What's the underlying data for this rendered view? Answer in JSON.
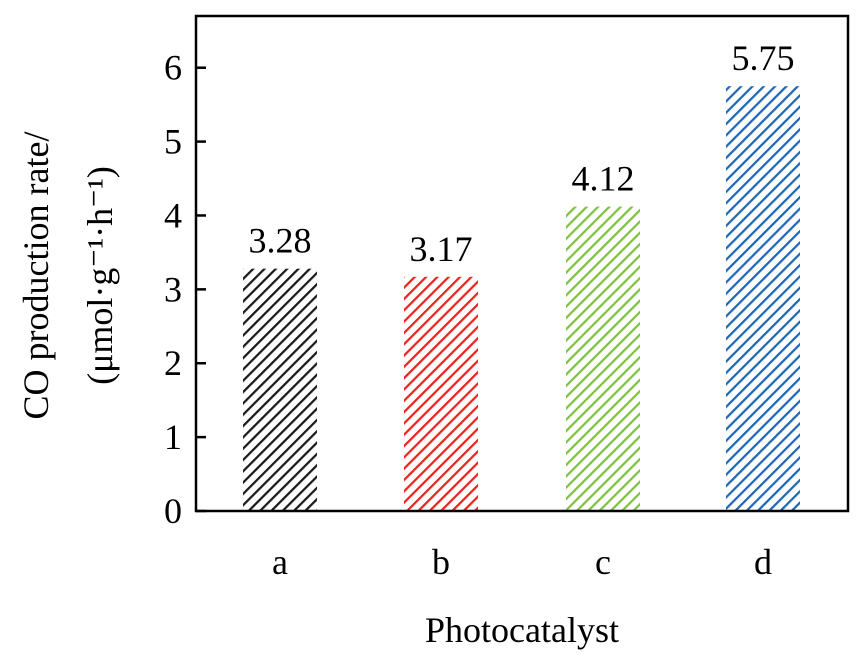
{
  "chart_data": {
    "type": "bar",
    "categories": [
      "a",
      "b",
      "c",
      "d"
    ],
    "values": [
      3.28,
      3.17,
      4.12,
      5.75
    ],
    "data_labels": [
      "3.28",
      "3.17",
      "4.12",
      "5.75"
    ],
    "xlabel": "Photocatalyst",
    "ylabel_line1": "CO production rate/",
    "ylabel_line2": "(μmol·g⁻¹·h⁻¹)",
    "ylim": [
      0,
      6.7
    ],
    "yticks": [
      0,
      1,
      2,
      3,
      4,
      5,
      6
    ],
    "grid": false,
    "hatch": "diagonal",
    "colors": [
      "#1a1a1a",
      "#e8251e",
      "#7fc241",
      "#1f68b3"
    ]
  }
}
